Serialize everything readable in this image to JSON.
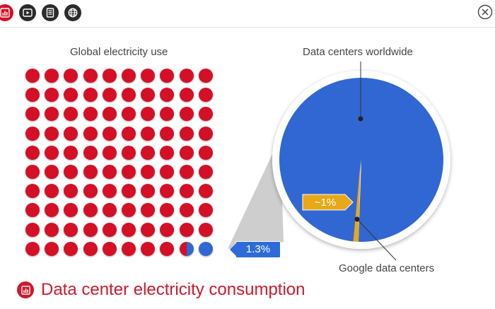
{
  "toolbar": {
    "buttons": [
      {
        "icon": "chart-icon",
        "active": true
      },
      {
        "icon": "video-icon",
        "active": false
      },
      {
        "icon": "document-icon",
        "active": false
      },
      {
        "icon": "globe-icon",
        "active": false
      }
    ],
    "close_icon": "close-icon"
  },
  "colors": {
    "red": "#d50f25",
    "blue": "#3167d3",
    "gold": "#e8a817",
    "active_button": "#d50f25",
    "dark_button": "#2b2b2b"
  },
  "footer": {
    "title": "Data center electricity consumption",
    "icon": "chart-icon"
  },
  "chart_data": [
    {
      "type": "waffle",
      "title": "Global electricity use",
      "rows": 10,
      "cols": 10,
      "total": 100,
      "highlight_value": 1.3,
      "highlight_label": "1.3%",
      "colors": {
        "rest": "#d50f25",
        "highlight": "#3167d3"
      }
    },
    {
      "type": "pie",
      "title": "Data centers worldwide",
      "slices": [
        {
          "name": "Data centers worldwide",
          "value": 99
        },
        {
          "name": "Google data centers",
          "value": 1,
          "label": "~1%"
        }
      ]
    }
  ]
}
